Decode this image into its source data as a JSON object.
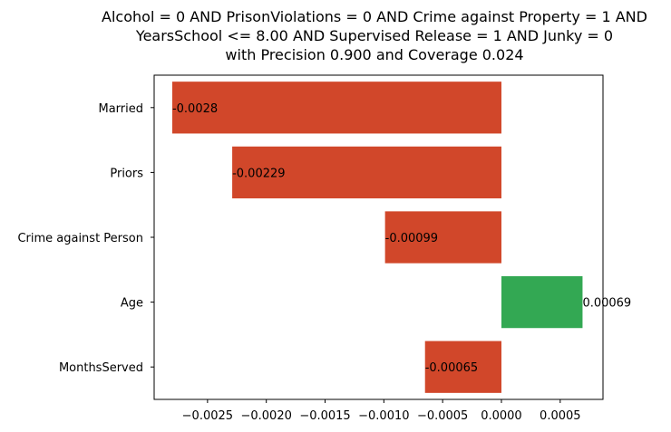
{
  "chart_data": {
    "type": "bar",
    "orientation": "horizontal",
    "title_lines": [
      "Alcohol = 0 AND PrisonViolations = 0 AND Crime against Property = 1 AND",
      "YearsSchool <= 8.00 AND Supervised Release = 1 AND Junky = 0",
      "with Precision 0.900 and Coverage 0.024"
    ],
    "categories": [
      "Married",
      "Priors",
      "Crime against Person",
      "Age",
      "MonthsServed"
    ],
    "values": [
      -0.0028,
      -0.00229,
      -0.00099,
      0.00069,
      -0.00065
    ],
    "value_labels": [
      "-0.0028",
      "-0.00229",
      "-0.00099",
      "0.00069",
      "-0.00065"
    ],
    "xlim": [
      -0.002954,
      0.000864
    ],
    "xticks": [
      -0.0025,
      -0.002,
      -0.0015,
      -0.001,
      -0.0005,
      0,
      0.0005
    ],
    "xtick_labels": [
      "−0.0025",
      "−0.0020",
      "−0.0015",
      "−0.0010",
      "−0.0005",
      "0.0000",
      "0.0005"
    ],
    "colors": {
      "negative": "#d1472a",
      "positive": "#33a853"
    },
    "grid": false,
    "legend": "none"
  }
}
